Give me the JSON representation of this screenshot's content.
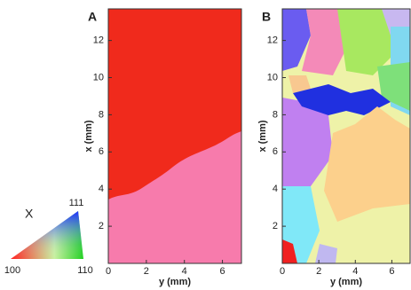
{
  "chart_data": [
    {
      "type": "map",
      "panel": "A",
      "xlabel": "y (mm)",
      "ylabel": "x (mm)",
      "xlim": [
        0,
        7
      ],
      "ylim": [
        0,
        13.7
      ],
      "xticks": [
        0,
        2,
        4,
        6
      ],
      "yticks": [
        2,
        4,
        6,
        8,
        10,
        12
      ]
    },
    {
      "type": "map",
      "panel": "B",
      "xlabel": "y (mm)",
      "ylabel": "x (mm)",
      "xlim": [
        0,
        7
      ],
      "ylim": [
        0,
        13.7
      ],
      "xticks": [
        0,
        2,
        4,
        6
      ],
      "yticks": [
        2,
        4,
        6,
        8,
        10,
        12
      ]
    }
  ],
  "legend": {
    "title": "X",
    "corners": [
      "100",
      "110",
      "111"
    ]
  }
}
